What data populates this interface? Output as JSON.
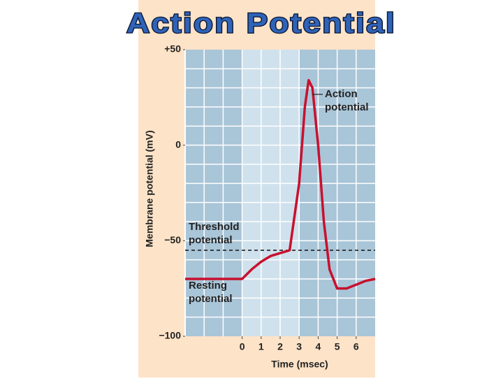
{
  "chart_data": {
    "type": "line",
    "title": "Action Potential",
    "x_label": "Time (msec)",
    "y_label": "Membrane potential (mV)",
    "x": [
      -3,
      0,
      0.5,
      1,
      1.5,
      2,
      2.5,
      3,
      3.3,
      3.5,
      3.7,
      4,
      4.3,
      4.6,
      5,
      5.5,
      6,
      6.5,
      7
    ],
    "values": [
      -70,
      -70,
      -65,
      -61,
      -58,
      -56.5,
      -55,
      -20,
      20,
      34,
      30,
      0,
      -40,
      -65,
      -75,
      -75,
      -73,
      -71,
      -70
    ],
    "color": "#c8102e",
    "xlim": [
      -3,
      7
    ],
    "ylim": [
      -100,
      50
    ],
    "xticks": [
      0,
      1,
      2,
      3,
      4,
      5,
      6
    ],
    "yticks": [
      {
        "value": 50,
        "label": "+50"
      },
      0,
      {
        "value": -50,
        "label": "−50"
      },
      {
        "value": -100,
        "label": "−100"
      }
    ],
    "xgrid": [
      -2,
      -1,
      0,
      1,
      2,
      3,
      4,
      5,
      6
    ],
    "ygrid": [
      40,
      30,
      20,
      10,
      0,
      -10,
      -20,
      -30,
      -40,
      -50,
      -60,
      -70,
      -80,
      -90
    ],
    "shaded_span": [
      0,
      3
    ],
    "threshold": -55,
    "plot_color": "#a9c5d8",
    "span_color": "#cfe1ec",
    "panel_color": "#fde3c8",
    "annotations": [
      [
        "Action",
        "potential"
      ],
      [
        "Threshold",
        "potential"
      ],
      [
        "Resting",
        "potential"
      ]
    ]
  }
}
